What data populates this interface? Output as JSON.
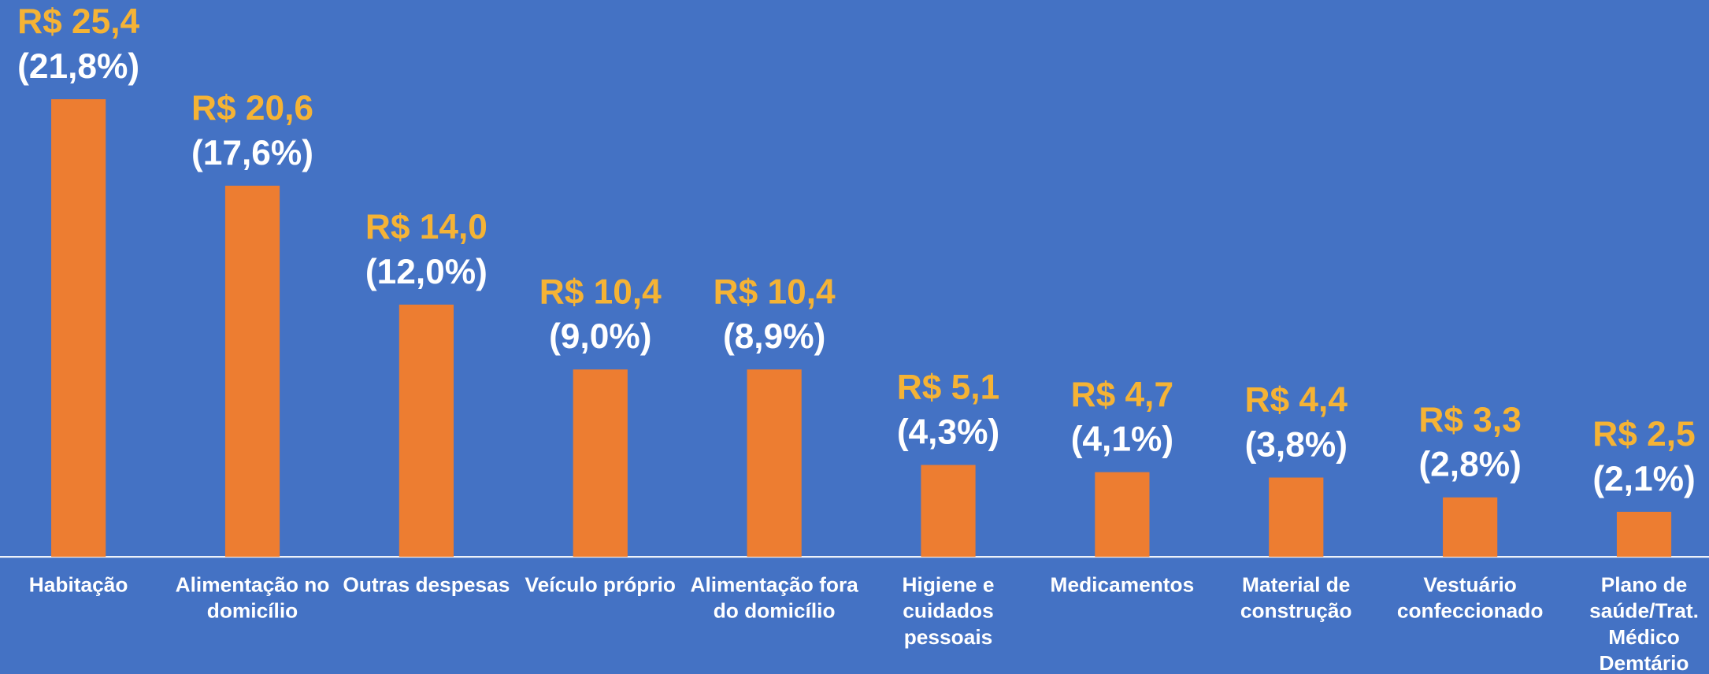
{
  "chart_data": {
    "type": "bar",
    "categories": [
      "Habitação",
      "Alimentação no domicílio",
      "Outras despesas",
      "Veículo próprio",
      "Alimentação fora do domicílio",
      "Higiene e cuidados pessoais",
      "Medicamentos",
      "Material de construção",
      "Vestuário confeccionado",
      "Plano de saúde/Trat. Médico Demtário"
    ],
    "values": [
      25.4,
      20.6,
      14.0,
      10.4,
      10.4,
      5.1,
      4.7,
      4.4,
      3.3,
      2.5
    ],
    "value_labels": [
      "R$ 25,4",
      "R$ 20,6",
      "R$ 14,0",
      "R$ 10,4",
      "R$ 10,4",
      "R$ 5,1",
      "R$ 4,7",
      "R$ 4,4",
      "R$ 3,3",
      "R$ 2,5"
    ],
    "share_labels": [
      "(21,8%)",
      "(17,6%)",
      "(12,0%)",
      "(9,0%)",
      "(8,9%)",
      "(4,3%)",
      "(4,1%)",
      "(3,8%)",
      "(2,8%)",
      "(2,1%)"
    ],
    "color": "#ed7d31",
    "value_label_color": "#f5b335",
    "ylim": [
      0,
      30
    ]
  }
}
